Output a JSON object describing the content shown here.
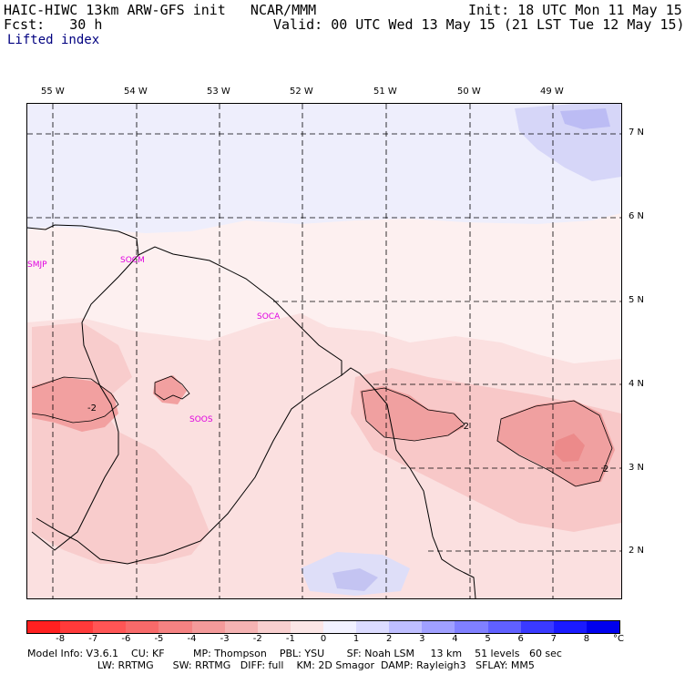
{
  "header": {
    "title_left": "HAIC-HIWC 13km ARW-GFS init   NCAR/MMM",
    "fcst_label": "Fcst:",
    "fcst_value": "30 h",
    "field_name": "Lifted index",
    "init": "Init: 18 UTC Mon 11 May 15",
    "valid": "Valid: 00 UTC Wed 13 May 15 (21 LST Tue 12 May 15)"
  },
  "map": {
    "longitude_labels": [
      "55 W",
      "54 W",
      "53 W",
      "52 W",
      "51 W",
      "50 W",
      "49 W"
    ],
    "latitude_labels": [
      "7 N",
      "6 N",
      "5 N",
      "4 N",
      "3 N",
      "2 N"
    ],
    "stations": [
      "SMJP",
      "SOCM",
      "SOCA",
      "SOOS"
    ],
    "contour_labels": [
      "-2",
      "-2",
      "2"
    ]
  },
  "colorbar": {
    "ticks": [
      "-8",
      "-7",
      "-6",
      "-5",
      "-4",
      "-3",
      "-2",
      "-1",
      "0",
      "1",
      "2",
      "3",
      "4",
      "5",
      "6",
      "7",
      "8"
    ],
    "unit": "°C",
    "colors": [
      "#ff2020",
      "#ff3a3a",
      "#ff5555",
      "#f86a6a",
      "#f58282",
      "#f49a9a",
      "#f5b3b3",
      "#f8cfcf",
      "#fbe6e6",
      "#f2f2ff",
      "#dcdcff",
      "#bfbfff",
      "#a0a0ff",
      "#8080ff",
      "#6060ff",
      "#3a3aff",
      "#1a1aff",
      "#0000ee"
    ]
  },
  "footer": {
    "line1": "Model Info: V3.6.1    CU: KF         MP: Thompson    PBL: YSU       SF: Noah LSM     13 km    51 levels   60 sec",
    "line2": "                      LW: RRTMG      SW: RRTMG   DIFF: full    KM: 2D Smagor  DAMP: Rayleigh3   SFLAY: MM5"
  }
}
